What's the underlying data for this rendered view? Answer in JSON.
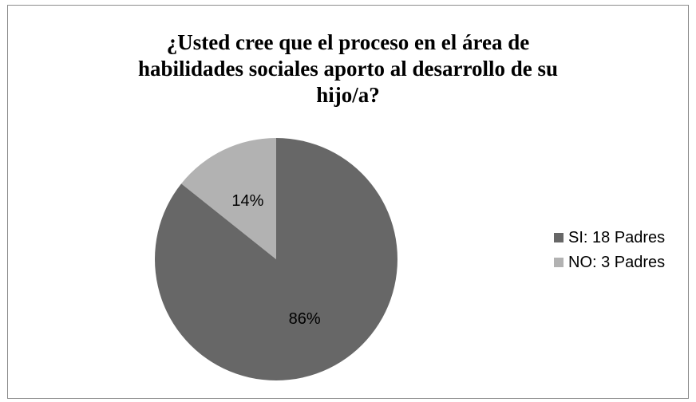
{
  "chart_data": {
    "type": "pie",
    "title": "¿Usted cree que el proceso en el área de habilidades sociales aporto al desarrollo de su hijo/a?",
    "title_lines": [
      "¿Usted cree que el proceso en el área de",
      "habilidades sociales aporto al desarrollo de su",
      "hijo/a?"
    ],
    "slices": [
      {
        "label": "SI: 18 Padres",
        "value": 18,
        "percent_label": "86%",
        "color": "#676767"
      },
      {
        "label": "NO: 3 Padres",
        "value": 3,
        "percent_label": "14%",
        "color": "#b2b2b2"
      }
    ],
    "legend_position": "right",
    "start_angle_deg": 0,
    "direction": "clockwise"
  }
}
